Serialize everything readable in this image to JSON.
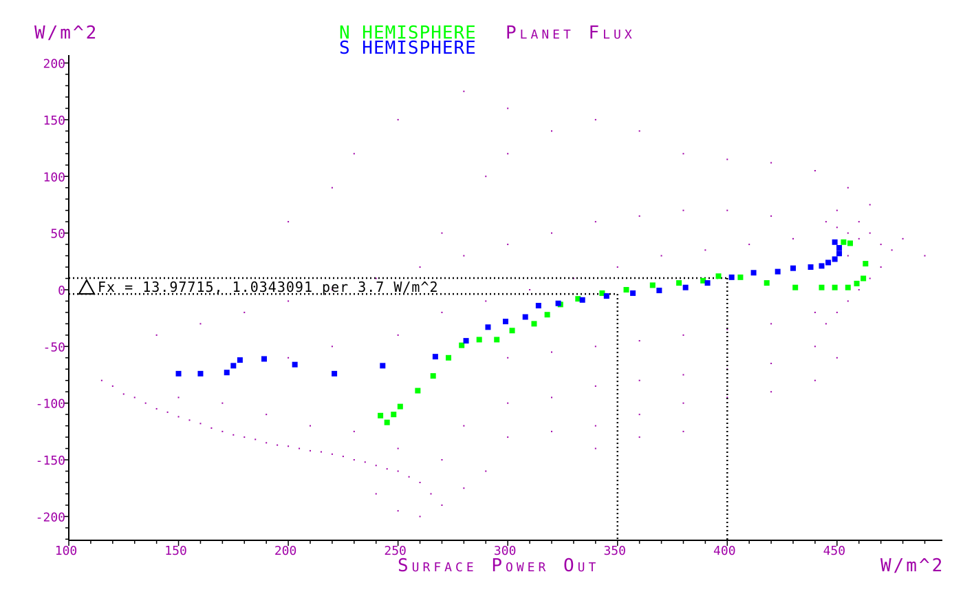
{
  "chart_data": {
    "type": "scatter",
    "title": "Planet Flux",
    "xlabel": "Surface Power Out",
    "x_unit": "W/m^2",
    "y_unit": "W/m^2",
    "xlim": [
      100,
      498
    ],
    "ylim": [
      -221,
      207
    ],
    "x_ticks": [
      "100",
      "150",
      "200",
      "250",
      "300",
      "350",
      "400",
      "450"
    ],
    "y_ticks": [
      "200",
      "150",
      "100",
      "50",
      "0",
      "-50",
      "-100",
      "-150",
      "-200"
    ],
    "grid": false,
    "legend_placement": "top-center",
    "colors": {
      "planet": "#a000a8",
      "north": "#00ff00",
      "south": "#0000ff",
      "axis": "#000000"
    },
    "annotation": {
      "symbol": "delta-triangle",
      "text": "Fx = 13.97715, 1.0343091 per 3.7 W/m^2",
      "guide_y": [
        10.3,
        -3.7
      ],
      "guide_x": [
        350,
        400
      ]
    },
    "series": [
      {
        "name": "N HEMISPHERE",
        "color": "#00ff00",
        "points": [
          [
            463,
            23
          ],
          [
            462,
            10
          ],
          [
            459,
            5.5
          ],
          [
            455,
            2
          ],
          [
            449,
            2
          ],
          [
            443,
            2
          ],
          [
            431,
            2
          ],
          [
            418,
            6
          ],
          [
            406,
            11
          ],
          [
            396,
            12
          ],
          [
            389,
            8
          ],
          [
            378,
            6
          ],
          [
            366,
            4
          ],
          [
            354,
            0
          ],
          [
            343,
            -3
          ],
          [
            332,
            -8
          ],
          [
            324,
            -13
          ],
          [
            318,
            -22
          ],
          [
            312,
            -30
          ],
          [
            302,
            -36
          ],
          [
            295,
            -44
          ],
          [
            287,
            -44
          ],
          [
            279,
            -49
          ],
          [
            273,
            -60
          ],
          [
            266,
            -76
          ],
          [
            259,
            -89
          ],
          [
            251,
            -103
          ],
          [
            248,
            -110
          ],
          [
            245,
            -117
          ],
          [
            242,
            -111
          ],
          [
            456,
            41
          ],
          [
            453,
            42
          ]
        ]
      },
      {
        "name": "S HEMISPHERE",
        "color": "#0000ff",
        "points": [
          [
            150,
            -74
          ],
          [
            160,
            -74
          ],
          [
            172,
            -73
          ],
          [
            175,
            -67
          ],
          [
            178,
            -62
          ],
          [
            189,
            -61
          ],
          [
            203,
            -66
          ],
          [
            221,
            -74
          ],
          [
            243,
            -67
          ],
          [
            267,
            -59
          ],
          [
            281,
            -45
          ],
          [
            291,
            -33
          ],
          [
            299,
            -28
          ],
          [
            308,
            -24
          ],
          [
            314,
            -14
          ],
          [
            323,
            -12
          ],
          [
            334,
            -9
          ],
          [
            345,
            -5.5
          ],
          [
            357,
            -3
          ],
          [
            369,
            -0.6
          ],
          [
            381,
            2
          ],
          [
            391,
            6
          ],
          [
            402,
            11
          ],
          [
            412,
            15
          ],
          [
            423,
            16
          ],
          [
            430,
            19
          ],
          [
            438,
            20
          ],
          [
            443,
            21
          ],
          [
            446,
            24
          ],
          [
            449,
            27
          ],
          [
            451,
            32
          ],
          [
            451,
            37
          ],
          [
            449,
            42
          ]
        ]
      },
      {
        "name": "Planet Flux",
        "color": "#a000a8",
        "points": [
          [
            115,
            -80
          ],
          [
            120,
            -85
          ],
          [
            125,
            -92
          ],
          [
            130,
            -95
          ],
          [
            135,
            -100
          ],
          [
            140,
            -105
          ],
          [
            145,
            -108
          ],
          [
            150,
            -112
          ],
          [
            155,
            -115
          ],
          [
            160,
            -118
          ],
          [
            165,
            -122
          ],
          [
            170,
            -125
          ],
          [
            175,
            -128
          ],
          [
            180,
            -130
          ],
          [
            185,
            -132
          ],
          [
            190,
            -135
          ],
          [
            195,
            -137
          ],
          [
            200,
            -138
          ],
          [
            205,
            -140
          ],
          [
            210,
            -142
          ],
          [
            215,
            -143
          ],
          [
            220,
            -145
          ],
          [
            225,
            -147
          ],
          [
            230,
            -150
          ],
          [
            235,
            -152
          ],
          [
            240,
            -155
          ],
          [
            245,
            -158
          ],
          [
            250,
            -160
          ],
          [
            255,
            -165
          ],
          [
            260,
            -170
          ],
          [
            265,
            -180
          ],
          [
            270,
            -190
          ],
          [
            150,
            -95
          ],
          [
            170,
            -100
          ],
          [
            190,
            -110
          ],
          [
            210,
            -120
          ],
          [
            230,
            -125
          ],
          [
            250,
            -140
          ],
          [
            270,
            -150
          ],
          [
            290,
            -160
          ],
          [
            240,
            -180
          ],
          [
            250,
            -195
          ],
          [
            260,
            -200
          ],
          [
            280,
            -175
          ],
          [
            140,
            -40
          ],
          [
            160,
            -30
          ],
          [
            180,
            -20
          ],
          [
            200,
            -10
          ],
          [
            220,
            0
          ],
          [
            240,
            10
          ],
          [
            260,
            20
          ],
          [
            280,
            30
          ],
          [
            300,
            40
          ],
          [
            320,
            50
          ],
          [
            340,
            60
          ],
          [
            360,
            65
          ],
          [
            380,
            70
          ],
          [
            400,
            70
          ],
          [
            420,
            65
          ],
          [
            200,
            -60
          ],
          [
            220,
            -50
          ],
          [
            250,
            -40
          ],
          [
            270,
            -20
          ],
          [
            290,
            -10
          ],
          [
            310,
            0
          ],
          [
            330,
            10
          ],
          [
            350,
            20
          ],
          [
            370,
            30
          ],
          [
            390,
            35
          ],
          [
            410,
            40
          ],
          [
            430,
            45
          ],
          [
            270,
            50
          ],
          [
            290,
            100
          ],
          [
            300,
            120
          ],
          [
            320,
            140
          ],
          [
            340,
            150
          ],
          [
            360,
            140
          ],
          [
            380,
            120
          ],
          [
            400,
            115
          ],
          [
            420,
            112
          ],
          [
            440,
            105
          ],
          [
            455,
            90
          ],
          [
            465,
            75
          ],
          [
            300,
            160
          ],
          [
            280,
            175
          ],
          [
            250,
            150
          ],
          [
            230,
            120
          ],
          [
            220,
            90
          ],
          [
            200,
            60
          ],
          [
            445,
            60
          ],
          [
            450,
            55
          ],
          [
            455,
            50
          ],
          [
            460,
            45
          ],
          [
            465,
            50
          ],
          [
            470,
            40
          ],
          [
            450,
            70
          ],
          [
            455,
            30
          ],
          [
            460,
            60
          ],
          [
            475,
            35
          ],
          [
            480,
            45
          ],
          [
            490,
            30
          ],
          [
            470,
            20
          ],
          [
            465,
            10
          ],
          [
            460,
            0
          ],
          [
            455,
            -10
          ],
          [
            450,
            -20
          ],
          [
            445,
            -30
          ],
          [
            300,
            -60
          ],
          [
            320,
            -55
          ],
          [
            340,
            -50
          ],
          [
            360,
            -45
          ],
          [
            380,
            -40
          ],
          [
            400,
            -35
          ],
          [
            420,
            -30
          ],
          [
            440,
            -20
          ],
          [
            300,
            -100
          ],
          [
            320,
            -95
          ],
          [
            340,
            -85
          ],
          [
            360,
            -80
          ],
          [
            380,
            -75
          ],
          [
            400,
            -70
          ],
          [
            420,
            -65
          ],
          [
            440,
            -50
          ],
          [
            280,
            -120
          ],
          [
            300,
            -130
          ],
          [
            320,
            -125
          ],
          [
            340,
            -120
          ],
          [
            360,
            -110
          ],
          [
            380,
            -100
          ],
          [
            400,
            -95
          ],
          [
            420,
            -90
          ],
          [
            440,
            -80
          ],
          [
            450,
            -60
          ],
          [
            340,
            -140
          ],
          [
            360,
            -130
          ],
          [
            380,
            -125
          ]
        ]
      }
    ]
  }
}
